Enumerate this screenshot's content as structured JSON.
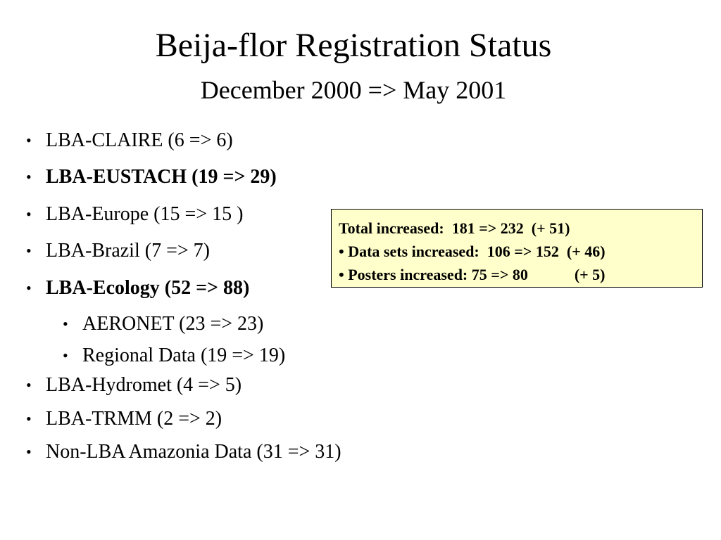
{
  "header": {
    "title": "Beija-flor Registration Status",
    "subtitle": "December 2000 => May 2001"
  },
  "bullets": [
    {
      "text": "LBA-CLAIRE (6 => 6)"
    },
    {
      "text": "LBA-EUSTACH (19 => 29)",
      "bold": true
    },
    {
      "text": "LBA-Europe (15 => 15 )"
    },
    {
      "text": "LBA-Brazil (7 => 7)"
    },
    {
      "text": "LBA-Ecology (52 => 88)",
      "bold": true,
      "children": [
        {
          "text": "AERONET (23 => 23)"
        },
        {
          "text": "Regional Data (19 => 19)"
        }
      ]
    },
    {
      "text": "LBA-Hydromet (4 => 5)"
    },
    {
      "text": "LBA-TRMM (2 => 2)"
    },
    {
      "text": "Non-LBA Amazonia Data (31 => 31)"
    }
  ],
  "summary_box": {
    "lines": [
      "Total increased:  181 => 232  (+ 51)",
      "• Data sets increased:  106 => 152  (+ 46)",
      "• Posters increased: 75 => 80            (+ 5)"
    ]
  }
}
